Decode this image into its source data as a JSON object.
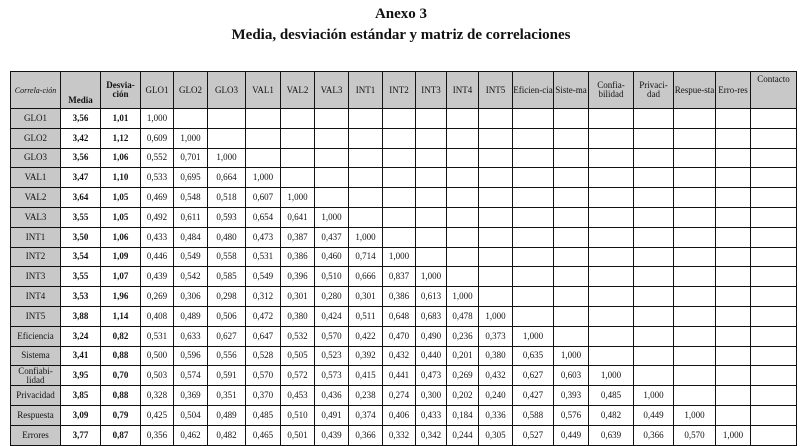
{
  "title": "Anexo 3",
  "subtitle": "Media, desviación estándar y matriz de correlaciones",
  "table": {
    "headers": [
      "Correla-ción",
      "Media",
      "Desvia-ción",
      "GLO1",
      "GLO2",
      "GLO3",
      "VAL1",
      "VAL2",
      "VAL3",
      "INT1",
      "INT2",
      "INT3",
      "INT4",
      "INT5",
      "Eficien-cia",
      "Siste-ma",
      "Confia-bilidad",
      "Privaci-dad",
      "Respue-sta",
      "Erro-res",
      "Contacto"
    ],
    "rows": [
      {
        "label": "GLO1",
        "media": "3,56",
        "desv": "1,01",
        "corr": [
          "1,000"
        ]
      },
      {
        "label": "GLO2",
        "media": "3,42",
        "desv": "1,12",
        "corr": [
          "0,609",
          "1,000"
        ]
      },
      {
        "label": "GLO3",
        "media": "3,56",
        "desv": "1,06",
        "corr": [
          "0,552",
          "0,701",
          "1,000"
        ]
      },
      {
        "label": "VAL1",
        "media": "3,47",
        "desv": "1,10",
        "corr": [
          "0,533",
          "0,695",
          "0,664",
          "1,000"
        ]
      },
      {
        "label": "VAL2",
        "media": "3,64",
        "desv": "1,05",
        "corr": [
          "0,469",
          "0,548",
          "0,518",
          "0,607",
          "1,000"
        ]
      },
      {
        "label": "VAL3",
        "media": "3,55",
        "desv": "1,05",
        "corr": [
          "0,492",
          "0,611",
          "0,593",
          "0,654",
          "0,641",
          "1,000"
        ]
      },
      {
        "label": "INT1",
        "media": "3,50",
        "desv": "1,06",
        "corr": [
          "0,433",
          "0,484",
          "0,480",
          "0,473",
          "0,387",
          "0,437",
          "1,000"
        ]
      },
      {
        "label": "INT2",
        "media": "3,54",
        "desv": "1,09",
        "corr": [
          "0,446",
          "0,549",
          "0,558",
          "0,531",
          "0,386",
          "0,460",
          "0,714",
          "1,000"
        ]
      },
      {
        "label": "INT3",
        "media": "3,55",
        "desv": "1,07",
        "corr": [
          "0,439",
          "0,542",
          "0,585",
          "0,549",
          "0,396",
          "0,510",
          "0,666",
          "0,837",
          "1,000"
        ]
      },
      {
        "label": "INT4",
        "media": "3,53",
        "desv": "1,96",
        "corr": [
          "0,269",
          "0,306",
          "0,298",
          "0,312",
          "0,301",
          "0,280",
          "0,301",
          "0,386",
          "0,613",
          "1,000"
        ]
      },
      {
        "label": "INT5",
        "media": "3,88",
        "desv": "1,14",
        "corr": [
          "0,408",
          "0,489",
          "0,506",
          "0,472",
          "0,380",
          "0,424",
          "0,511",
          "0,648",
          "0,683",
          "0,478",
          "1,000"
        ]
      },
      {
        "label": "Eficiencia",
        "media": "3,24",
        "desv": "0,82",
        "corr": [
          "0,531",
          "0,633",
          "0,627",
          "0,647",
          "0,532",
          "0,570",
          "0,422",
          "0,470",
          "0,490",
          "0,236",
          "0,373",
          "1,000"
        ]
      },
      {
        "label": "Sistema",
        "media": "3,41",
        "desv": "0,88",
        "corr": [
          "0,500",
          "0,596",
          "0,556",
          "0,528",
          "0,505",
          "0,523",
          "0,392",
          "0,432",
          "0,440",
          "0,201",
          "0,380",
          "0,635",
          "1,000"
        ]
      },
      {
        "label": "Confiabi-lidad",
        "media": "3,95",
        "desv": "0,70",
        "corr": [
          "0,503",
          "0,574",
          "0,591",
          "0,570",
          "0,572",
          "0,573",
          "0,415",
          "0,441",
          "0,473",
          "0,269",
          "0,432",
          "0,627",
          "0,603",
          "1,000"
        ]
      },
      {
        "label": "Privacidad",
        "media": "3,85",
        "desv": "0,88",
        "corr": [
          "0,328",
          "0,369",
          "0,351",
          "0,370",
          "0,453",
          "0,436",
          "0,238",
          "0,274",
          "0,300",
          "0,202",
          "0,240",
          "0,427",
          "0,393",
          "0,485",
          "1,000"
        ]
      },
      {
        "label": "Respuesta",
        "media": "3,09",
        "desv": "0,79",
        "corr": [
          "0,425",
          "0,504",
          "0,489",
          "0,485",
          "0,510",
          "0,491",
          "0,374",
          "0,406",
          "0,433",
          "0,184",
          "0,336",
          "0,588",
          "0,576",
          "0,482",
          "0,449",
          "1,000"
        ]
      },
      {
        "label": "Errores",
        "media": "3,77",
        "desv": "0,87",
        "corr": [
          "0,356",
          "0,462",
          "0,482",
          "0,465",
          "0,501",
          "0,439",
          "0,366",
          "0,332",
          "0,342",
          "0,244",
          "0,305",
          "0,527",
          "0,449",
          "0,639",
          "0,366",
          "0,570",
          "1,000"
        ]
      }
    ]
  }
}
